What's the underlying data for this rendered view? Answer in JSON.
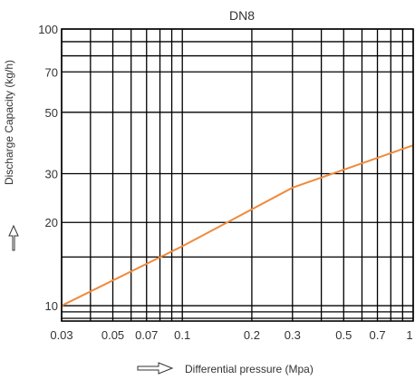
{
  "chart_data": {
    "type": "line",
    "title": "DN8",
    "xlabel": "Differential pressure (Mpa)",
    "ylabel": "Discharge Capacity (kg/h)",
    "x_scale": "log",
    "y_scale": "log",
    "xlim": [
      0.03,
      1
    ],
    "ylim": [
      8.8,
      100
    ],
    "grid": true,
    "x_tick_labels": [
      "0.03",
      "0.05",
      "0.07",
      "0.1",
      "0.2",
      "0.3",
      "0.5",
      "0.7",
      "1"
    ],
    "x_ticks": [
      0.03,
      0.05,
      0.07,
      0.1,
      0.2,
      0.3,
      0.5,
      0.7,
      1
    ],
    "x_minor_grid": [
      0.04,
      0.06,
      0.08,
      0.09,
      0.4,
      0.6,
      0.8,
      0.9
    ],
    "y_tick_labels": [
      "10",
      "20",
      "30",
      "50",
      "70",
      "100"
    ],
    "y_ticks": [
      10,
      20,
      30,
      50,
      70,
      100
    ],
    "y_minor_grid": [
      9,
      9.5,
      15,
      80,
      90
    ],
    "series": [
      {
        "color": "#f08a3c",
        "x": [
          0.03,
          0.1,
          0.3,
          1
        ],
        "y": [
          10,
          16.4,
          26.7,
          38
        ]
      }
    ]
  }
}
